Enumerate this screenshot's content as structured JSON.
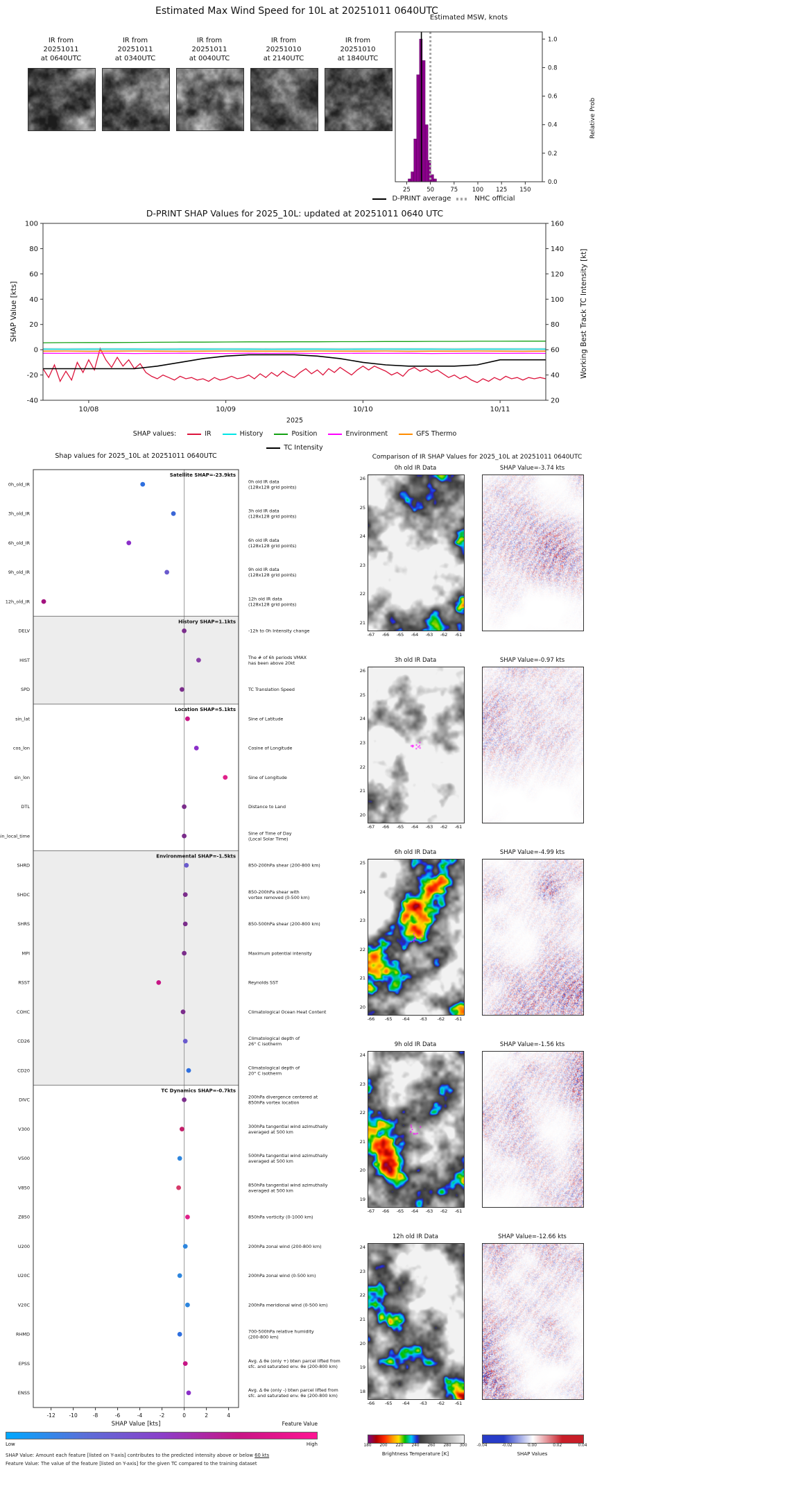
{
  "header": {
    "title": "Estimated Max Wind Speed for 10L at 20251011 0640UTC"
  },
  "ir_thumbnails": [
    {
      "label_lines": [
        "IR from",
        "20251011",
        "at 0640UTC"
      ]
    },
    {
      "label_lines": [
        "IR from",
        "20251011",
        "at 0340UTC"
      ]
    },
    {
      "label_lines": [
        "IR from",
        "20251011",
        "at 0040UTC"
      ]
    },
    {
      "label_lines": [
        "IR from",
        "20251010",
        "at 2140UTC"
      ]
    },
    {
      "label_lines": [
        "IR from",
        "20251010",
        "at 1840UTC"
      ]
    }
  ],
  "legend_top": {
    "dprint": "D-PRINT average",
    "nhc": "NHC official"
  },
  "feature_value_colorbar": {
    "title": "Feature Value",
    "low": "Low",
    "high": "High",
    "gradient": [
      "#00a8ff",
      "#5a6fd8",
      "#8b3fc9",
      "#c71585",
      "#ff1493"
    ]
  },
  "footnotes": {
    "line1_prefix": "SHAP Value: Amount each feature [listed on Y-axis] contributes to the predicted intensity above or below ",
    "line1_underlined": "60 kts",
    "line2": "Feature Value: The value of the feature [listed on Y-axis] for the given TC compared to the training dataset"
  },
  "chart_data": [
    {
      "id": "msw_histogram",
      "type": "bar",
      "title": "Estimated MSW, knots",
      "ylabel": "Relative Prob",
      "xlim": [
        13,
        168
      ],
      "ylim": [
        0,
        1.05
      ],
      "xticks": [
        25,
        50,
        75,
        100,
        125,
        150
      ],
      "yticks": [
        "0.0",
        "0.2",
        "0.4",
        "0.6",
        "0.8",
        "1.0"
      ],
      "bar_color": "#8B008B",
      "bin_width": 3,
      "bars": [
        {
          "x": 28,
          "h": 0.02
        },
        {
          "x": 31,
          "h": 0.07
        },
        {
          "x": 34,
          "h": 0.3
        },
        {
          "x": 37,
          "h": 0.75
        },
        {
          "x": 40,
          "h": 1.0
        },
        {
          "x": 43,
          "h": 0.85
        },
        {
          "x": 46,
          "h": 0.4
        },
        {
          "x": 49,
          "h": 0.15
        },
        {
          "x": 52,
          "h": 0.05
        },
        {
          "x": 55,
          "h": 0.02
        }
      ],
      "dprint_average_x": 40.5,
      "nhc_official_x": 50
    },
    {
      "id": "shap_timeseries",
      "type": "line",
      "title": "D-PRINT SHAP Values for 2025_10L: updated at 20251011 0640 UTC",
      "ylabel_left": "SHAP Value [kts]",
      "ylabel_right": "Working Best Track TC Intensity [kt]",
      "xlabel": "2025",
      "legend_label": "SHAP values:",
      "ylim_left": [
        -40,
        100
      ],
      "ylim_right": [
        20,
        160
      ],
      "yticks_left": [
        -40,
        -20,
        0,
        20,
        40,
        60,
        80,
        100
      ],
      "yticks_right": [
        20,
        40,
        60,
        80,
        100,
        120,
        140,
        160
      ],
      "x_range": [
        0,
        88
      ],
      "xticks": [
        {
          "hour": 8,
          "label": "10/08"
        },
        {
          "hour": 32,
          "label": "10/09"
        },
        {
          "hour": 56,
          "label": "10/10"
        },
        {
          "hour": 80,
          "label": "10/11"
        }
      ],
      "series": [
        {
          "name": "IR",
          "color": "#DC143C",
          "axis": "left",
          "x_start": 0,
          "x_step": 1,
          "y": [
            -15,
            -22,
            -12,
            -25,
            -17,
            -24,
            -10,
            -18,
            -8,
            -16,
            1,
            -8,
            -14,
            -6,
            -13,
            -8,
            -15,
            -11,
            -18,
            -21,
            -23,
            -20,
            -22,
            -24,
            -21,
            -23,
            -22,
            -24,
            -23,
            -25,
            -22,
            -24,
            -23,
            -21,
            -23,
            -22,
            -20,
            -23,
            -19,
            -22,
            -18,
            -21,
            -17,
            -20,
            -22,
            -18,
            -15,
            -19,
            -16,
            -20,
            -15,
            -18,
            -14,
            -17,
            -20,
            -16,
            -13,
            -16,
            -13,
            -15,
            -17,
            -20,
            -18,
            -21,
            -16,
            -14,
            -17,
            -15,
            -18,
            -16,
            -19,
            -22,
            -20,
            -23,
            -21,
            -24,
            -26,
            -23,
            -25,
            -22,
            -24,
            -21,
            -23,
            -22,
            -24,
            -22,
            -23,
            -22,
            -23
          ]
        },
        {
          "name": "History",
          "color": "#00E5E5",
          "axis": "left",
          "x_start": 0,
          "x_step": 4,
          "y": [
            0.5,
            0.4,
            0.5,
            0.6,
            0.5,
            0.4,
            0.5,
            0.5,
            0.6,
            0.5,
            0.4,
            0.5,
            0.5,
            0.4,
            0.5,
            0.6,
            0.5,
            0.5,
            0.4,
            0.5,
            0.5,
            0.6,
            0.5
          ]
        },
        {
          "name": "Position",
          "color": "#13A113",
          "axis": "left",
          "x_start": 0,
          "x_step": 4,
          "y": [
            5.5,
            5.6,
            5.7,
            5.7,
            5.8,
            5.9,
            6.0,
            6.0,
            6.1,
            6.2,
            6.2,
            6.3,
            6.3,
            6.4,
            6.4,
            6.5,
            6.5,
            6.6,
            6.6,
            6.7,
            6.7,
            6.8,
            6.8
          ]
        },
        {
          "name": "Environment",
          "color": "#FF00FF",
          "axis": "left",
          "x_start": 0,
          "x_step": 4,
          "y": [
            -2.8,
            -2.9,
            -2.7,
            -2.8,
            -3.0,
            -2.9,
            -2.8,
            -2.9,
            -3.0,
            -2.8,
            -2.9,
            -2.8,
            -3.0,
            -2.9,
            -2.8,
            -2.9,
            -2.8,
            -3.0,
            -2.9,
            -2.8,
            -2.9,
            -2.8,
            -2.9
          ]
        },
        {
          "name": "GFS Thermo",
          "color": "#FF8C00",
          "axis": "left",
          "x_start": 0,
          "x_step": 4,
          "y": [
            -1.2,
            -1.1,
            -1.3,
            -1.2,
            -1.1,
            -1.2,
            -1.3,
            -1.2,
            -1.1,
            -1.2,
            -1.2,
            -1.3,
            -1.1,
            -1.2,
            -1.2,
            -1.1,
            -1.3,
            -1.2,
            -1.2,
            -1.1,
            -1.2,
            -1.3,
            -1.2
          ]
        },
        {
          "name": "TC Intensity",
          "color": "#000000",
          "axis": "right",
          "x_start": 0,
          "x_step": 4,
          "y": [
            45,
            45,
            45,
            45,
            45,
            47,
            50,
            53,
            55,
            56,
            56,
            56,
            55,
            53,
            50,
            48,
            47,
            47,
            47,
            48,
            52,
            52,
            52
          ]
        }
      ]
    },
    {
      "id": "feature_shap",
      "type": "scatter",
      "title": "Shap values for 2025_10L at 20251011 0640UTC",
      "xlabel": "SHAP Value [kts]",
      "xlim": [
        -13.6,
        4.9
      ],
      "xticks": [
        -12,
        -10,
        -8,
        -6,
        -4,
        -2,
        0,
        2,
        4
      ],
      "groups": [
        {
          "label": "Satellite SHAP=-23.9kts",
          "features": [
            {
              "name": "0h_old_IR",
              "shap": -3.74,
              "color": "#2e6fdf",
              "desc": "0h old IR data\n(128x128 grid points)"
            },
            {
              "name": "3h_old_IR",
              "shap": -0.97,
              "color": "#3a66d6",
              "desc": "3h old IR data\n(128x128 grid points)"
            },
            {
              "name": "6h_old_IR",
              "shap": -4.99,
              "color": "#8b2fc9",
              "desc": "6h old IR data\n(128x128 grid points)"
            },
            {
              "name": "9h_old_IR",
              "shap": -1.56,
              "color": "#6a5acd",
              "desc": "9h old IR data\n(128x128 grid points)"
            },
            {
              "name": "12h_old_IR",
              "shap": -12.66,
              "color": "#a3127f",
              "desc": "12h old IR data\n(128x128 grid points)"
            }
          ]
        },
        {
          "label": "History SHAP=1.1kts",
          "features": [
            {
              "name": "DELV",
              "shap": 0.0,
              "color": "#7b2d8b",
              "desc": "-12h to 0h Intensity change"
            },
            {
              "name": "HIST",
              "shap": 1.3,
              "color": "#8b3fa8",
              "desc": "The # of 6h periods VMAX\nhas been above 20kt"
            },
            {
              "name": "SPD",
              "shap": -0.2,
              "color": "#7b2d8b",
              "desc": "TC Translation Speed"
            }
          ]
        },
        {
          "label": "Location SHAP=5.1kts",
          "features": [
            {
              "name": "sin_lat",
              "shap": 0.3,
              "color": "#c71585",
              "desc": "Sine of Latitude"
            },
            {
              "name": "cos_lon",
              "shap": 1.1,
              "color": "#8b2fc9",
              "desc": "Cosine of Longitude"
            },
            {
              "name": "sin_lon",
              "shap": 3.7,
              "color": "#e0218a",
              "desc": "Sine of Longitude"
            },
            {
              "name": "DTL",
              "shap": 0.0,
              "color": "#7b2d8b",
              "desc": "Distance to Land"
            },
            {
              "name": "sin_local_time",
              "shap": 0.0,
              "color": "#7b2d8b",
              "desc": "Sine of Time of Day\n(Local Solar Time)"
            }
          ]
        },
        {
          "label": "Environmental SHAP=-1.5kts",
          "features": [
            {
              "name": "SHRD",
              "shap": 0.2,
              "color": "#6a5acd",
              "desc": "850-200hPa shear (200-800 km)"
            },
            {
              "name": "SHDC",
              "shap": 0.1,
              "color": "#7b2d8b",
              "desc": "850-200hPa shear with\nvortex removed (0-500 km)"
            },
            {
              "name": "SHRS",
              "shap": 0.1,
              "color": "#7b2d8b",
              "desc": "850-500hPa shear (200-800 km)"
            },
            {
              "name": "MPI",
              "shap": 0.0,
              "color": "#7b2d8b",
              "desc": "Maximum potential intensity"
            },
            {
              "name": "RSST",
              "shap": -2.3,
              "color": "#c71585",
              "desc": "Reynolds SST"
            },
            {
              "name": "COHC",
              "shap": -0.1,
              "color": "#7b2d8b",
              "desc": "Climatological Ocean Heat Content"
            },
            {
              "name": "CD26",
              "shap": 0.1,
              "color": "#6a5acd",
              "desc": "Climatological depth of\n26° C isotherm"
            },
            {
              "name": "CD20",
              "shap": 0.4,
              "color": "#2e6fdf",
              "desc": "Climatological depth of\n20° C isotherm"
            }
          ]
        },
        {
          "label": "TC Dynamics SHAP=-0.7kts",
          "features": [
            {
              "name": "DIVC",
              "shap": 0.0,
              "color": "#7b2d8b",
              "desc": "200hPa divergence centered at\n850hPa vortex location"
            },
            {
              "name": "V300",
              "shap": -0.2,
              "color": "#c41e6a",
              "desc": "300hPa tangential wind azimuthally\naveraged at 500 km"
            },
            {
              "name": "V500",
              "shap": -0.4,
              "color": "#2e86de",
              "desc": "500hPa tangential wind azimuthally\naveraged at 500 km"
            },
            {
              "name": "V850",
              "shap": -0.5,
              "color": "#d63a6a",
              "des2": "",
              "desc": "850hPa tangential wind azimuthally\naveraged at 500 km"
            },
            {
              "name": "Z850",
              "shap": 0.3,
              "color": "#e0218a",
              "desc": "850hPa vorticity (0-1000 km)"
            },
            {
              "name": "U200",
              "shap": 0.1,
              "color": "#2e86de",
              "desc": "200hPa zonal wind (200-800 km)"
            },
            {
              "name": "U20C",
              "shap": -0.4,
              "color": "#2e86de",
              "desc": "200hPa zonal wind (0-500 km)"
            },
            {
              "name": "V20C",
              "shap": 0.3,
              "color": "#2e86de",
              "desc": "200hPa meridional wind (0-500 km)"
            },
            {
              "name": "RHMD",
              "shap": -0.4,
              "color": "#2e6fdf",
              "desc": "700-500hPa relative humidity\n(200-800 km)"
            },
            {
              "name": "EPSS",
              "shap": 0.1,
              "color": "#c71585",
              "desc": "Avg. Δ θe (only +) btwn parcel lifted from\nsfc. and saturated env. θe (200-800 km)"
            },
            {
              "name": "ENSS",
              "shap": 0.4,
              "color": "#8b2fc9",
              "desc": "Avg. Δ θe (only -) btwn parcel lifted from\nsfc. and saturated env. θe (200-800 km)"
            }
          ]
        }
      ]
    },
    {
      "id": "ir_shap_comparison",
      "type": "heatmap",
      "title": "Comparison of IR SHAP Values for 2025_10L at 20251011 0640UTC",
      "rows": [
        {
          "ir_title": "0h old IR Data",
          "shap_title": "SHAP Value=-3.74 kts",
          "shap_kts": -3.74,
          "yticks": [
            26,
            25,
            24,
            23,
            22,
            21
          ],
          "xticks": [
            -67,
            -66,
            -65,
            -64,
            -63,
            -62,
            -61
          ]
        },
        {
          "ir_title": "3h old IR Data",
          "shap_title": "SHAP Value=-0.97 kts",
          "shap_kts": -0.97,
          "yticks": [
            26,
            25,
            24,
            23,
            22,
            21,
            20
          ],
          "xticks": [
            -67,
            -66,
            -65,
            -64,
            -63,
            -62,
            -61
          ]
        },
        {
          "ir_title": "6h old IR Data",
          "shap_title": "SHAP Value=-4.99 kts",
          "shap_kts": -4.99,
          "yticks": [
            25,
            24,
            23,
            22,
            21,
            20
          ],
          "xticks": [
            -66,
            -65,
            -64,
            -63,
            -62,
            -61
          ]
        },
        {
          "ir_title": "9h old IR Data",
          "shap_title": "SHAP Value=-1.56 kts",
          "shap_kts": -1.56,
          "yticks": [
            24,
            23,
            22,
            21,
            20,
            19
          ],
          "xticks": [
            -67,
            -66,
            -65,
            -64,
            -63,
            -62,
            -61
          ]
        },
        {
          "ir_title": "12h old IR Data",
          "shap_title": "SHAP Value=-12.66 kts",
          "shap_kts": -12.66,
          "yticks": [
            24,
            23,
            22,
            21,
            20,
            19,
            18
          ],
          "xticks": [
            -66,
            -65,
            -64,
            -63,
            -62,
            -61
          ]
        }
      ],
      "colorbar_bt": {
        "label": "Brightness Temperature [K]",
        "ticks": [
          180,
          200,
          220,
          240,
          260,
          280,
          300
        ]
      },
      "colorbar_shap": {
        "label": "SHAP Values",
        "ticks": [
          "-0.04",
          "-0.02",
          "0.00",
          "0.02",
          "0.04"
        ]
      }
    }
  ]
}
